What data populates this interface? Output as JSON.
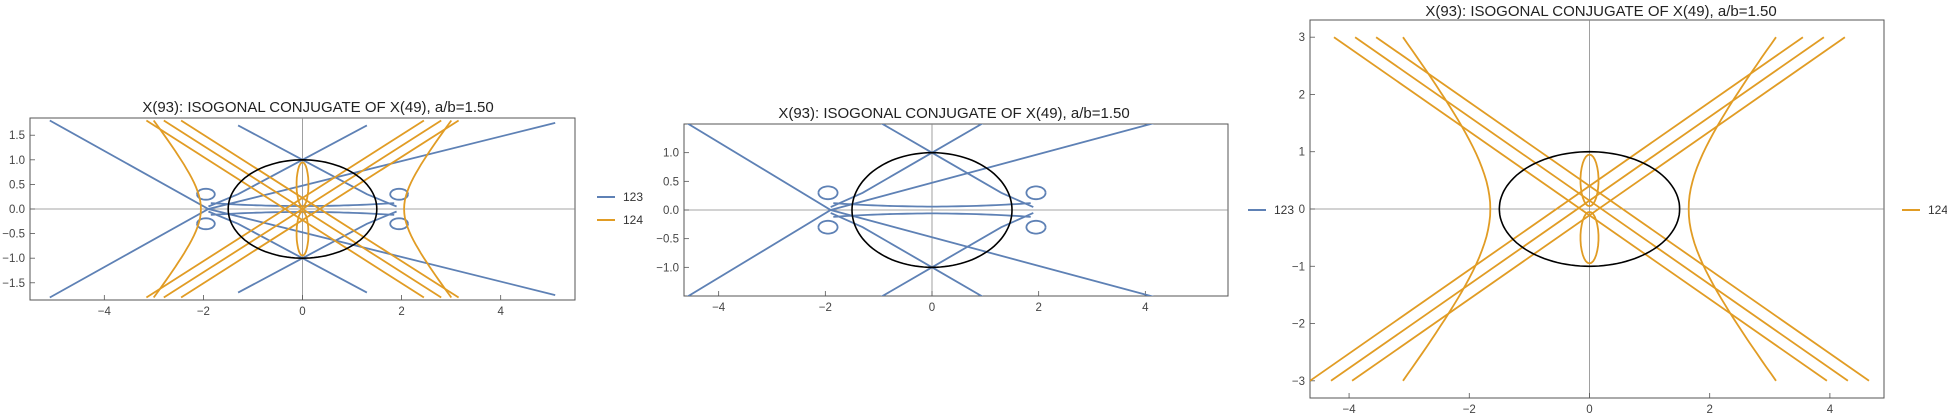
{
  "colors": {
    "series_123": "#5e81b5",
    "series_124": "#e19c24",
    "ellipse": "#000000",
    "axis": "#888888",
    "frame": "#555555"
  },
  "chart_data": [
    {
      "type": "line",
      "title": "X(93): ISOGONAL CONJUGATE OF X(49), a/b=1.50",
      "xlabel": "",
      "ylabel": "",
      "xlim": [
        -5.5,
        5.5
      ],
      "ylim": [
        -1.85,
        1.85
      ],
      "xticks": [
        "−4",
        "−2",
        "0",
        "2",
        "4"
      ],
      "xtick_values": [
        -4,
        -2,
        0,
        2,
        4
      ],
      "yticks": [
        "−1.5",
        "−1.0",
        "−0.5",
        "0.0",
        "0.5",
        "1.0",
        "1.5"
      ],
      "ytick_values": [
        -1.5,
        -1.0,
        -0.5,
        0.0,
        0.5,
        1.0,
        1.5
      ],
      "ellipse": {
        "a": 1.5,
        "b": 1.0
      },
      "legend_position": "right",
      "series": [
        {
          "name": "123",
          "color": "#5e81b5"
        },
        {
          "name": "124",
          "color": "#e19c24"
        }
      ]
    },
    {
      "type": "line",
      "title": "X(93): ISOGONAL CONJUGATE OF X(49), a/b=1.50",
      "xlabel": "",
      "ylabel": "",
      "xlim": [
        -4.65,
        5.55
      ],
      "ylim": [
        -1.5,
        1.5
      ],
      "xticks": [
        "−4",
        "−2",
        "0",
        "2",
        "4"
      ],
      "xtick_values": [
        -4,
        -2,
        0,
        2,
        4
      ],
      "yticks": [
        "−1.0",
        "−0.5",
        "0.0",
        "0.5",
        "1.0"
      ],
      "ytick_values": [
        -1.0,
        -0.5,
        0.0,
        0.5,
        1.0
      ],
      "ellipse": {
        "a": 1.5,
        "b": 1.0
      },
      "legend_position": "right",
      "series": [
        {
          "name": "123",
          "color": "#5e81b5"
        }
      ]
    },
    {
      "type": "line",
      "title": "X(93): ISOGONAL CONJUGATE OF X(49), a/b=1.50",
      "xlabel": "",
      "ylabel": "",
      "xlim": [
        -4.65,
        4.9
      ],
      "ylim": [
        -3.3,
        3.3
      ],
      "xticks": [
        "−4",
        "−2",
        "0",
        "2",
        "4"
      ],
      "xtick_values": [
        -4,
        -2,
        0,
        2,
        4
      ],
      "yticks": [
        "−3",
        "−2",
        "−1",
        "0",
        "1",
        "2",
        "3"
      ],
      "ytick_values": [
        -3,
        -2,
        -1,
        0,
        1,
        2,
        3
      ],
      "ellipse": {
        "a": 1.5,
        "b": 1.0
      },
      "legend_position": "right",
      "series": [
        {
          "name": "124",
          "color": "#e19c24"
        }
      ]
    }
  ]
}
